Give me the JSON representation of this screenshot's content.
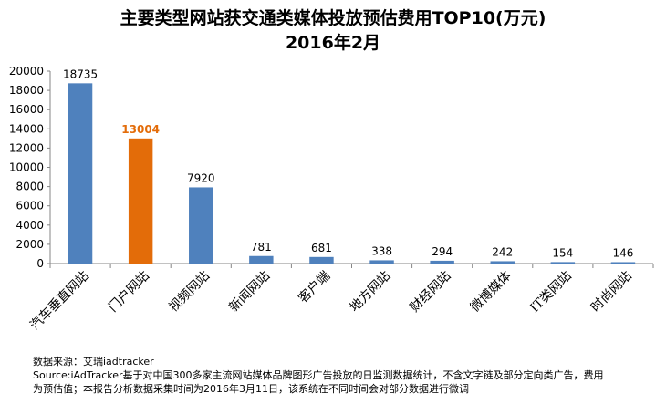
{
  "chart_data": {
    "type": "bar",
    "title": "主要类型网站获交通类媒体投放预估费用TOP10(万元)",
    "subtitle": "2016年2月",
    "categories": [
      "汽车垂直网站",
      "门户网站",
      "视频网站",
      "新闻网站",
      "客户端",
      "地方网站",
      "财经网站",
      "微博媒体",
      "IT类网站",
      "时尚网站"
    ],
    "values": [
      18735,
      13004,
      7920,
      781,
      681,
      338,
      294,
      242,
      154,
      146
    ],
    "value_labels": [
      "18735",
      "13004",
      "7920",
      "781",
      "681",
      "338",
      "294",
      "242",
      "154",
      "146"
    ],
    "ylim": [
      0,
      20000
    ],
    "yticks": [
      0,
      2000,
      4000,
      6000,
      8000,
      10000,
      12000,
      14000,
      16000,
      18000,
      20000
    ],
    "ytick_labels": [
      "0",
      "2000",
      "4000",
      "6000",
      "8000",
      "10000",
      "12000",
      "14000",
      "16000",
      "18000",
      "20000"
    ],
    "colors": {
      "default": "#4f81bd",
      "highlight": "#e36c09"
    },
    "highlight_index": 1,
    "grid": false,
    "legend": "none"
  },
  "footer": {
    "line1": "数据来源：艾瑞iadtracker",
    "line2": "Source:iAdTracker基于对中国300多家主流网站媒体品牌图形广告投放的日监测数据统计，不含文字链及部分定向类广告，费用",
    "line3": "为预估值；本报告分析数据采集时间为2016年3月11日，该系统在不同时间会对部分数据进行微调"
  }
}
